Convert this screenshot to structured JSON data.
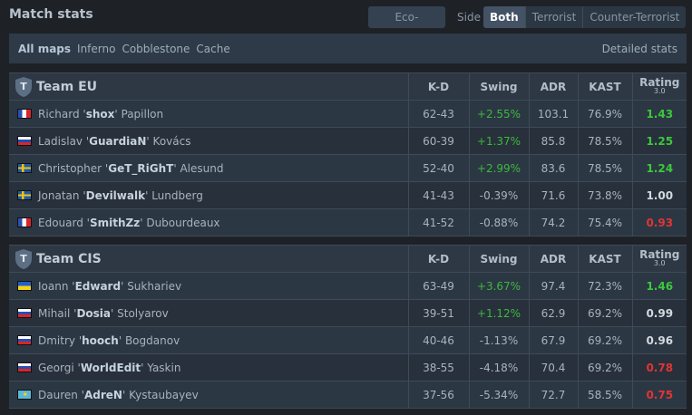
{
  "title": "Match stats",
  "eco_label": "Eco-adjusted",
  "side_label": "Side",
  "sides": [
    "Both",
    "Terrorist",
    "Counter-Terrorist"
  ],
  "maps": [
    "All maps",
    "Inferno",
    "Cobblestone",
    "Cache"
  ],
  "detailed": "Detailed stats",
  "columns": {
    "kd": "K-D",
    "swing": "Swing",
    "adr": "ADR",
    "kast": "KAST",
    "rating": "Rating",
    "rating_ver": "3.0"
  },
  "colors": {
    "positive": "#3cc83c",
    "negative": "#e03535"
  },
  "teams": [
    {
      "name": "Team EU",
      "logo": "T",
      "players": [
        {
          "flag": "france",
          "first": "Richard",
          "nick": "shox",
          "last": "Papillon",
          "kd": "62-43",
          "swing": "+2.55%",
          "adr": "103.1",
          "kast": "76.9%",
          "rating": "1.43"
        },
        {
          "flag": "slovakia",
          "first": "Ladislav",
          "nick": "GuardiaN",
          "last": "Kovács",
          "kd": "60-39",
          "swing": "+1.37%",
          "adr": "85.8",
          "kast": "78.5%",
          "rating": "1.25"
        },
        {
          "flag": "sweden",
          "first": "Christopher",
          "nick": "GeT_RiGhT",
          "last": "Alesund",
          "kd": "52-40",
          "swing": "+2.99%",
          "adr": "83.6",
          "kast": "78.5%",
          "rating": "1.24"
        },
        {
          "flag": "sweden",
          "first": "Jonatan",
          "nick": "Devilwalk",
          "last": "Lundberg",
          "kd": "41-43",
          "swing": "-0.39%",
          "adr": "71.6",
          "kast": "73.8%",
          "rating": "1.00"
        },
        {
          "flag": "france",
          "first": "Edouard",
          "nick": "SmithZz",
          "last": "Dubourdeaux",
          "kd": "41-52",
          "swing": "-0.88%",
          "adr": "74.2",
          "kast": "75.4%",
          "rating": "0.93"
        }
      ]
    },
    {
      "name": "Team CIS",
      "logo": "T",
      "players": [
        {
          "flag": "ukraine",
          "first": "Ioann",
          "nick": "Edward",
          "last": "Sukhariev",
          "kd": "63-49",
          "swing": "+3.67%",
          "adr": "97.4",
          "kast": "72.3%",
          "rating": "1.46"
        },
        {
          "flag": "russia",
          "first": "Mihail",
          "nick": "Dosia",
          "last": "Stolyarov",
          "kd": "39-51",
          "swing": "+1.12%",
          "adr": "62.9",
          "kast": "69.2%",
          "rating": "0.99"
        },
        {
          "flag": "russia",
          "first": "Dmitry",
          "nick": "hooch",
          "last": "Bogdanov",
          "kd": "40-46",
          "swing": "-1.13%",
          "adr": "67.9",
          "kast": "69.2%",
          "rating": "0.96"
        },
        {
          "flag": "russia",
          "first": "Georgi",
          "nick": "WorldEdit",
          "last": "Yaskin",
          "kd": "38-55",
          "swing": "-4.18%",
          "adr": "70.4",
          "kast": "69.2%",
          "rating": "0.78"
        },
        {
          "flag": "kazakhstan",
          "first": "Dauren",
          "nick": "AdreN",
          "last": "Kystaubayev",
          "kd": "37-56",
          "swing": "-5.34%",
          "adr": "72.7",
          "kast": "58.5%",
          "rating": "0.75"
        }
      ]
    }
  ]
}
